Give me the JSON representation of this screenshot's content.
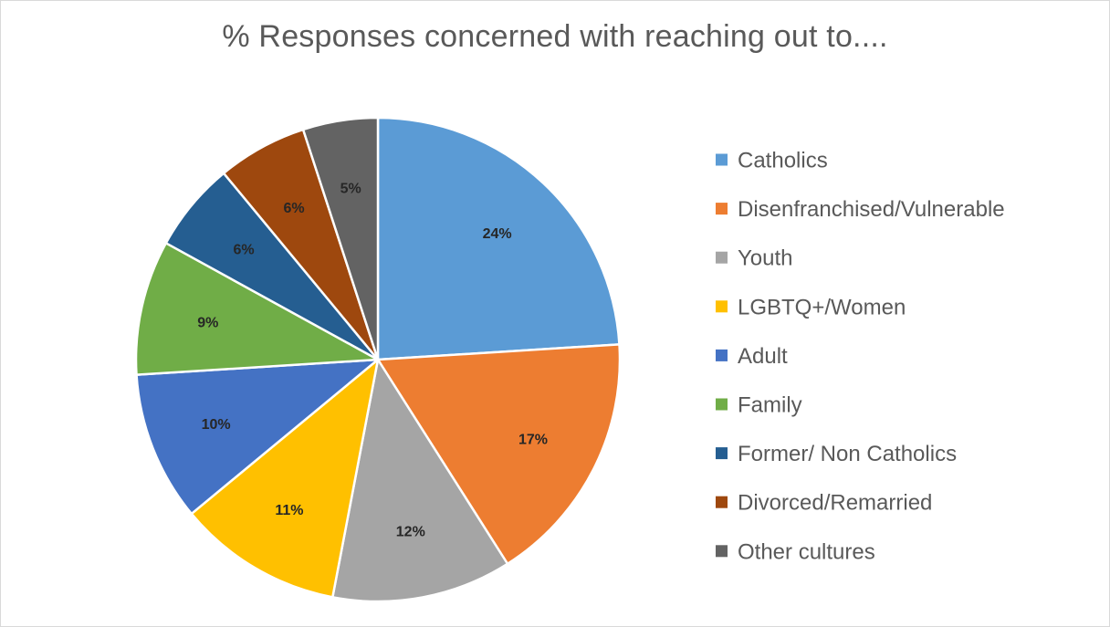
{
  "chart_data": {
    "type": "pie",
    "title": "% Responses concerned with reaching out to....",
    "legend_position": "right",
    "slices": [
      {
        "label": "Catholics",
        "value": 24,
        "display": "24%",
        "color": "#5b9bd5"
      },
      {
        "label": "Disenfranchised/Vulnerable",
        "value": 17,
        "display": "17%",
        "color": "#ed7d31"
      },
      {
        "label": "Youth",
        "value": 12,
        "display": "12%",
        "color": "#a5a5a5"
      },
      {
        "label": "LGBTQ+/Women",
        "value": 11,
        "display": "11%",
        "color": "#ffc000"
      },
      {
        "label": "Adult",
        "value": 10,
        "display": "10%",
        "color": "#4472c4"
      },
      {
        "label": "Family",
        "value": 9,
        "display": "9%",
        "color": "#70ad47"
      },
      {
        "label": "Former/ Non Catholics",
        "value": 6,
        "display": "6%",
        "color": "#255e91"
      },
      {
        "label": "Divorced/Remarried",
        "value": 6,
        "display": "6%",
        "color": "#9e480e"
      },
      {
        "label": "Other cultures",
        "value": 5,
        "display": "5%",
        "color": "#636363"
      }
    ]
  }
}
